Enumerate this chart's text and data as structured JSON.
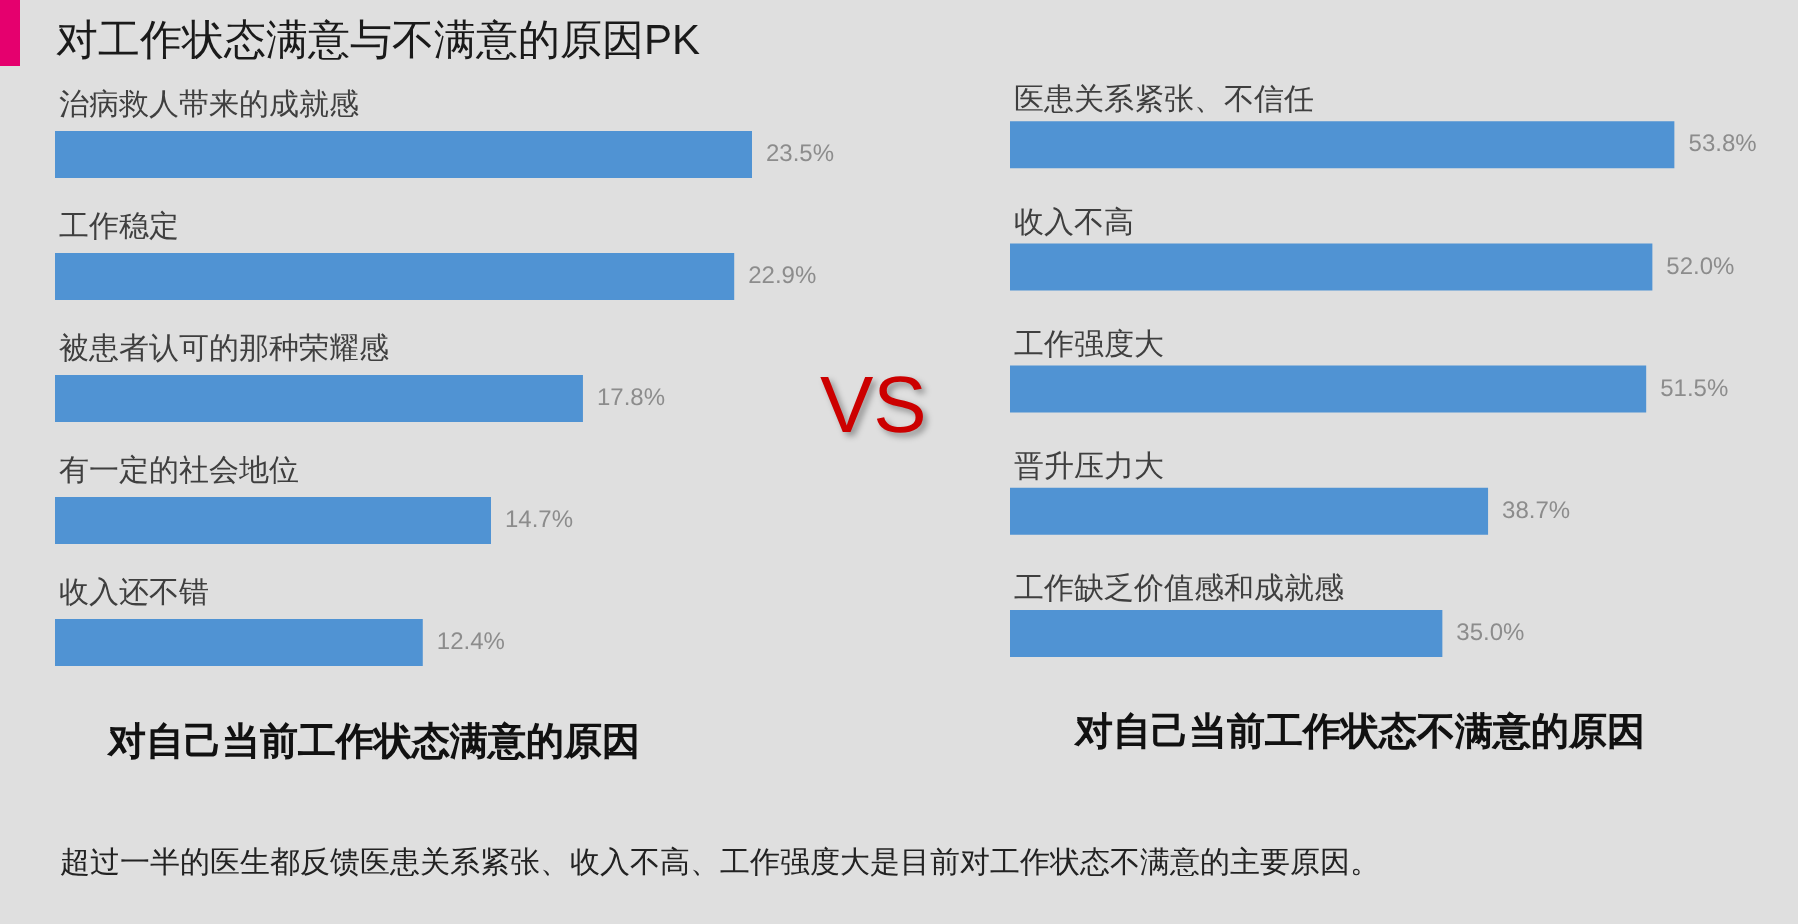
{
  "chart_data": [
    {
      "type": "bar",
      "orientation": "horizontal",
      "title": "对工作状态满意与不满意的原因PK",
      "xlabel": "对自己当前工作状态满意的原因",
      "categories": [
        "治病救人带来的成就感",
        "工作稳定",
        "被患者认可的那种荣耀感",
        "有一定的社会地位",
        "收入还不错"
      ],
      "values": [
        23.5,
        22.9,
        17.8,
        14.7,
        12.4
      ],
      "value_labels": [
        "23.5%",
        "22.9%",
        "17.8%",
        "14.7%",
        "12.4%"
      ],
      "color": "#5093d3",
      "tick_labels": "y",
      "annotations": [
        "VS",
        "超过一半的医生都反馈医患关系紧张、收入不高、工作强度大是目前对工作状态不满意的主要原因。"
      ]
    },
    {
      "type": "bar",
      "orientation": "horizontal",
      "xlabel": "对自己当前工作状态不满意的原因",
      "categories": [
        "医患关系紧张、不信任",
        "收入不高",
        "工作强度大",
        "晋升压力大",
        "工作缺乏价值感和成就感"
      ],
      "values": [
        53.8,
        52.0,
        51.5,
        38.7,
        35.0
      ],
      "value_labels": [
        "53.8%",
        "52.0%",
        "51.5%",
        "38.7%",
        "35.0%"
      ],
      "color": "#5093d3",
      "tick_labels": "y"
    }
  ]
}
